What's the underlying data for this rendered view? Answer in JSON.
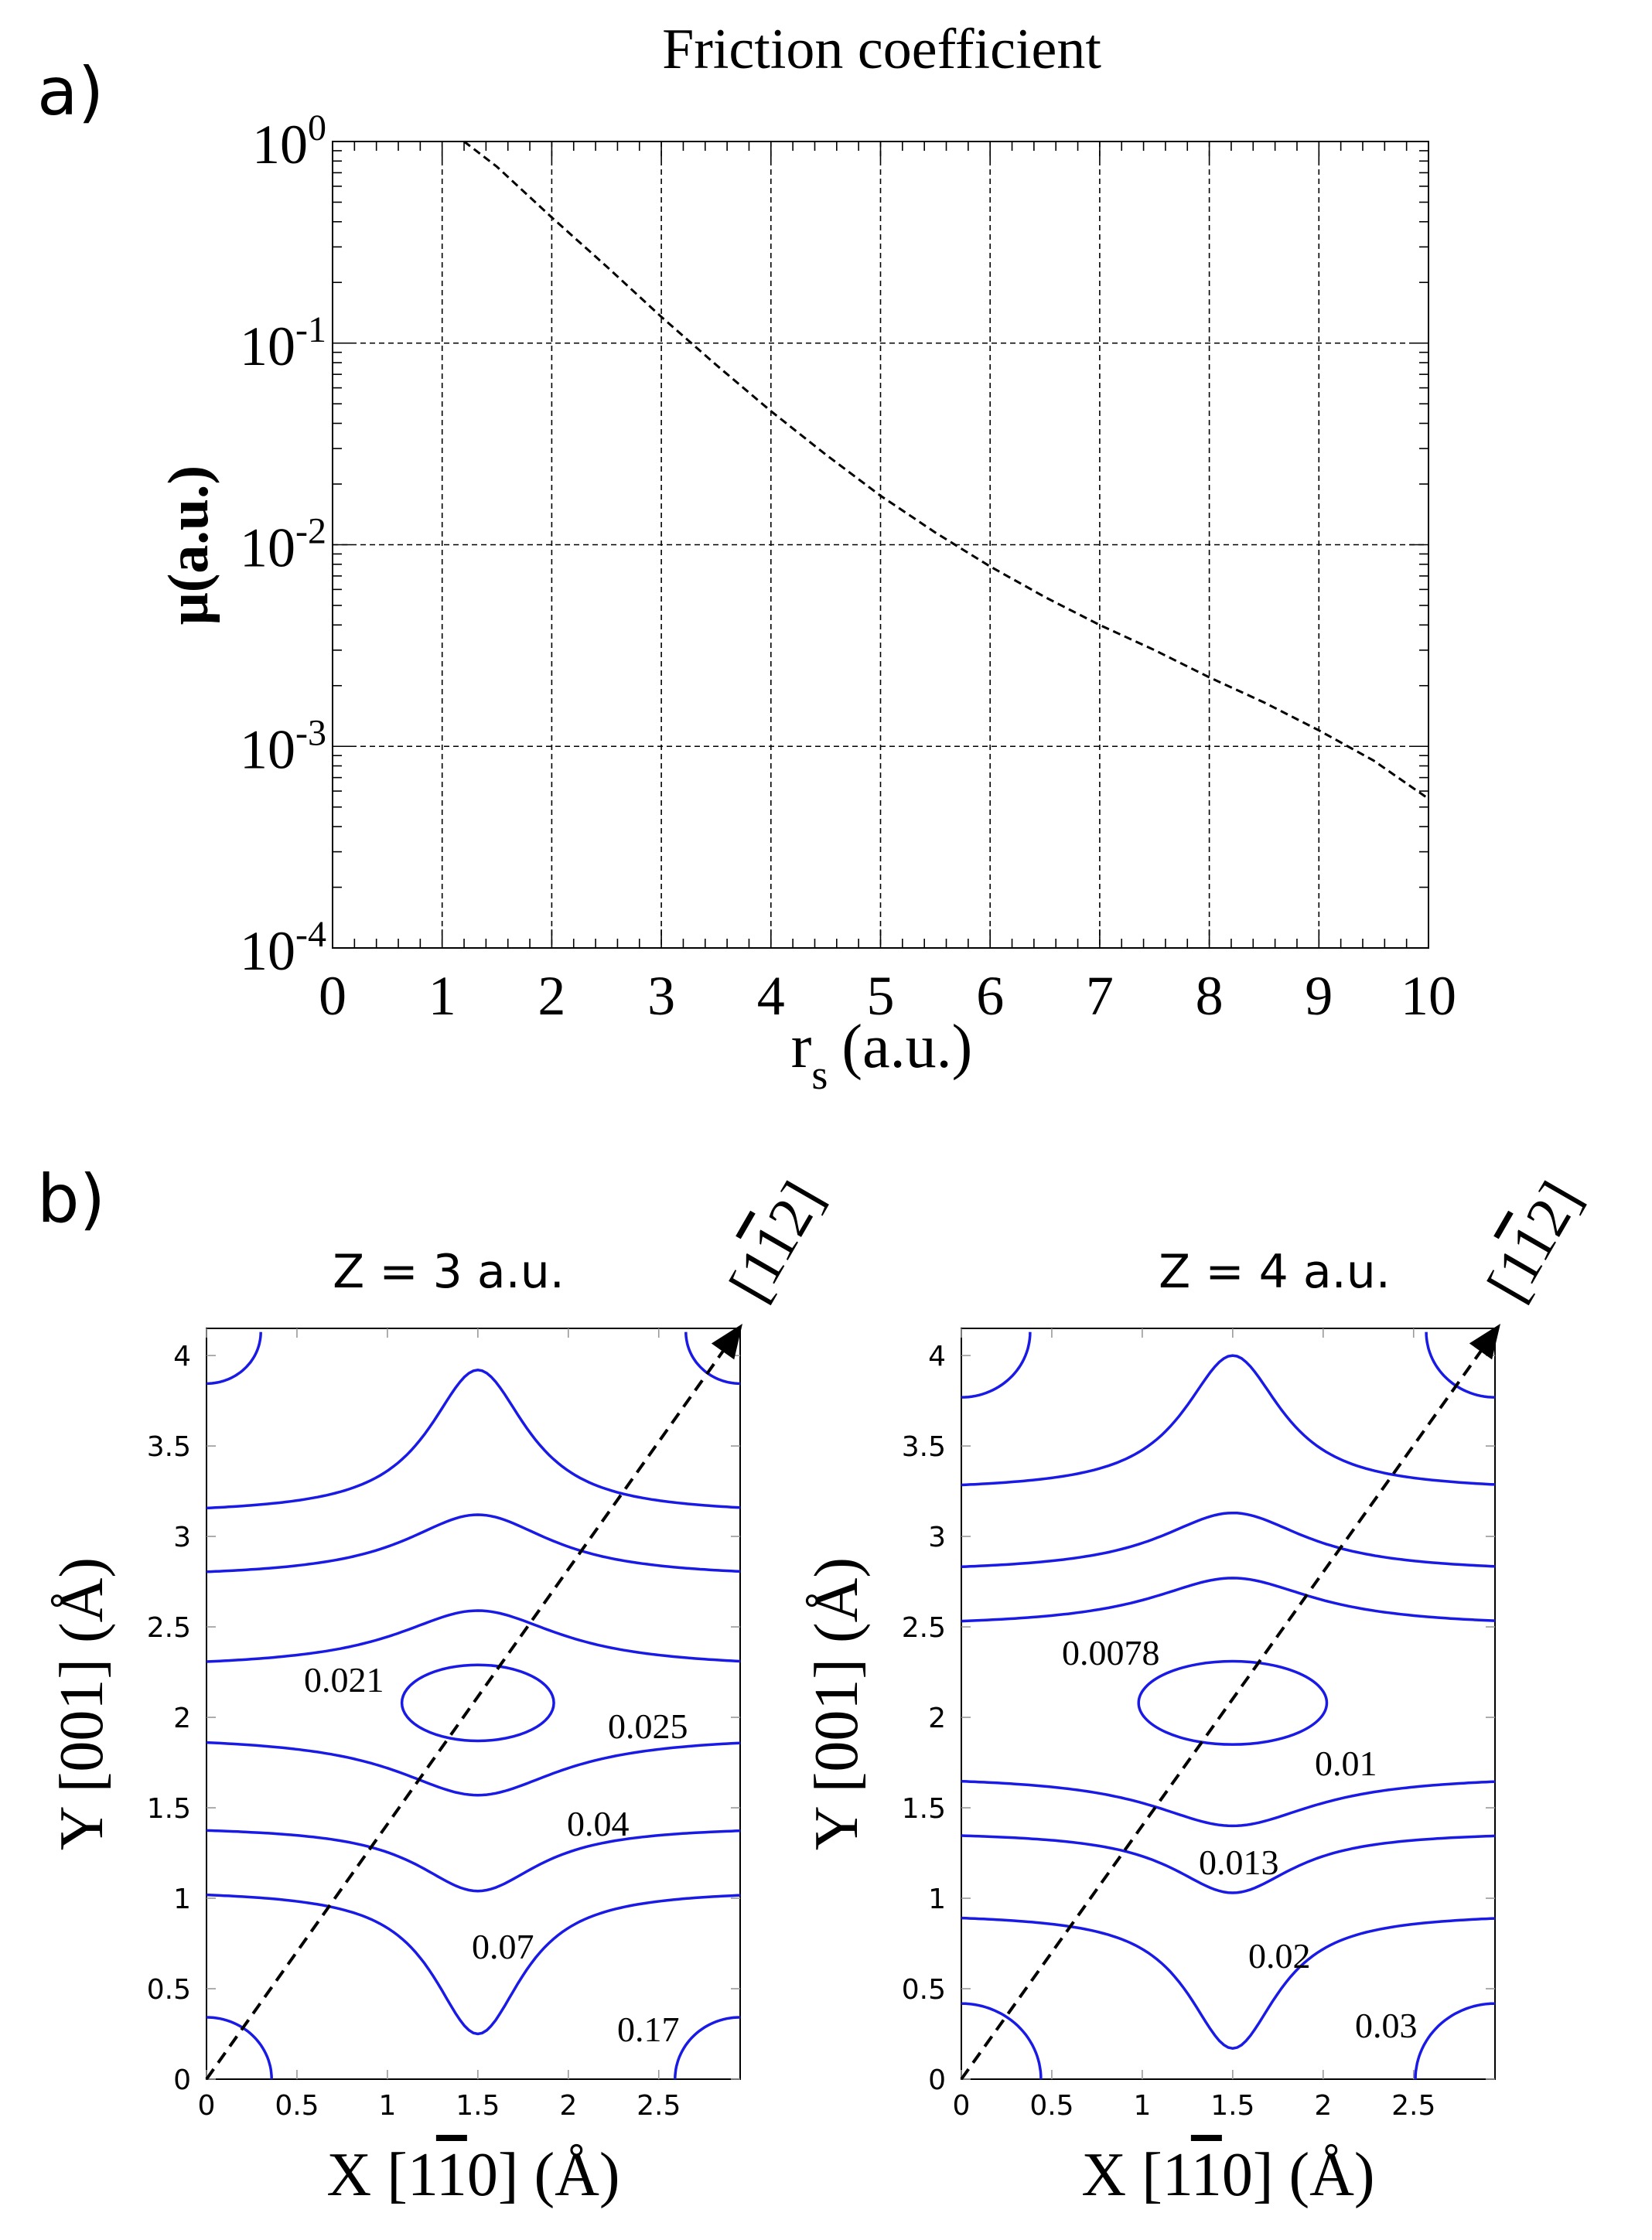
{
  "panel_labels": {
    "a": "a)",
    "b": "b)"
  },
  "chart_data": [
    {
      "type": "line",
      "title": "Friction coefficient",
      "xlabel": "r",
      "xlabel_sub": "s",
      "xlabel_unit": "(a.u.)",
      "ylabel": "μ(a.u.)",
      "xlim": [
        0,
        10
      ],
      "ylim": [
        0.0001,
        1
      ],
      "yscale": "log",
      "grid": true,
      "x_ticks": [
        "0",
        "1",
        "2",
        "3",
        "4",
        "5",
        "6",
        "7",
        "8",
        "9",
        "10"
      ],
      "y_ticks": [
        {
          "base": "10",
          "exp": "0"
        },
        {
          "base": "10",
          "exp": "-1"
        },
        {
          "base": "10",
          "exp": "-2"
        },
        {
          "base": "10",
          "exp": "-3"
        },
        {
          "base": "10",
          "exp": "-4"
        }
      ],
      "series": [
        {
          "line_style": "dashed",
          "color": "#000000",
          "x": [
            1.2,
            1.5,
            2.0,
            2.5,
            3.0,
            3.5,
            4.0,
            4.5,
            5.0,
            5.5,
            6.0,
            6.5,
            7.0,
            7.5,
            8.0,
            8.5,
            9.0,
            9.5,
            10.0
          ],
          "y": [
            1.0,
            0.75,
            0.42,
            0.24,
            0.135,
            0.078,
            0.046,
            0.028,
            0.0175,
            0.0115,
            0.0078,
            0.0055,
            0.004,
            0.003,
            0.0022,
            0.00165,
            0.0012,
            0.00085,
            0.00055
          ]
        }
      ]
    },
    {
      "type": "contour",
      "title": "Z = 3 a.u.",
      "xlabel": "X [1̅0] (Å)",
      "xlabel_parts": {
        "pre": "X [1",
        "bar": "1",
        "post": "0] (Å)"
      },
      "ylabel": "Y [001] (Å)",
      "xlim": [
        0,
        2.95
      ],
      "ylim": [
        0,
        4.15
      ],
      "x_ticks": [
        "0",
        "0.5",
        "1",
        "1.5",
        "2",
        "2.5"
      ],
      "y_ticks": [
        "0",
        "0.5",
        "1",
        "1.5",
        "2",
        "2.5",
        "3",
        "3.5",
        "4"
      ],
      "direction_label": {
        "pre": "[1",
        "bar": "1",
        "post": "2]"
      },
      "contour_color": "#1a1ae6",
      "levels": [
        "0.021",
        "0.025",
        "0.04",
        "0.07",
        "0.17"
      ],
      "ellipse": {
        "cx": 1.5,
        "cy": 2.08,
        "rx": 0.42,
        "ry": 0.21
      },
      "bands": [
        {
          "side_y": 1.05,
          "center_y": 0.25,
          "width": 0.55
        },
        {
          "side_y": 1.4,
          "center_y": 1.04,
          "width": 0.75
        },
        {
          "side_y": 1.9,
          "center_y": 1.57,
          "width": 1.0
        },
        {
          "side_y": 2.27,
          "center_y": 2.59,
          "width": 1.0
        },
        {
          "side_y": 2.77,
          "center_y": 3.12,
          "width": 0.9
        },
        {
          "side_y": 3.12,
          "center_y": 3.92,
          "width": 0.6
        }
      ],
      "corner_radius_bottom": 0.36,
      "corner_radius_top": 0.3
    },
    {
      "type": "contour",
      "title": "Z = 4 a.u.",
      "xlabel": "X [1̅0] (Å)",
      "xlabel_parts": {
        "pre": "X [1",
        "bar": "1",
        "post": "0] (Å)"
      },
      "ylabel": "Y [001] (Å)",
      "xlim": [
        0,
        2.95
      ],
      "ylim": [
        0,
        4.15
      ],
      "x_ticks": [
        "0",
        "0.5",
        "1",
        "1.5",
        "2",
        "2.5"
      ],
      "y_ticks": [
        "0",
        "0.5",
        "1",
        "1.5",
        "2",
        "2.5",
        "3",
        "3.5",
        "4"
      ],
      "direction_label": {
        "pre": "[1",
        "bar": "1",
        "post": "2]"
      },
      "contour_color": "#1a1ae6",
      "levels": [
        "0.0078",
        "0.01",
        "0.013",
        "0.02",
        "0.03"
      ],
      "ellipse": {
        "cx": 1.5,
        "cy": 2.08,
        "rx": 0.52,
        "ry": 0.23
      },
      "bands": [
        {
          "side_y": 0.92,
          "center_y": 0.17,
          "width": 0.55
        },
        {
          "side_y": 1.37,
          "center_y": 1.03,
          "width": 0.75
        },
        {
          "side_y": 1.68,
          "center_y": 1.4,
          "width": 1.0
        },
        {
          "side_y": 2.5,
          "center_y": 2.77,
          "width": 1.0
        },
        {
          "side_y": 2.8,
          "center_y": 3.13,
          "width": 0.9
        },
        {
          "side_y": 3.25,
          "center_y": 4.0,
          "width": 0.6
        }
      ],
      "corner_radius_bottom": 0.44,
      "corner_radius_top": 0.38
    }
  ]
}
